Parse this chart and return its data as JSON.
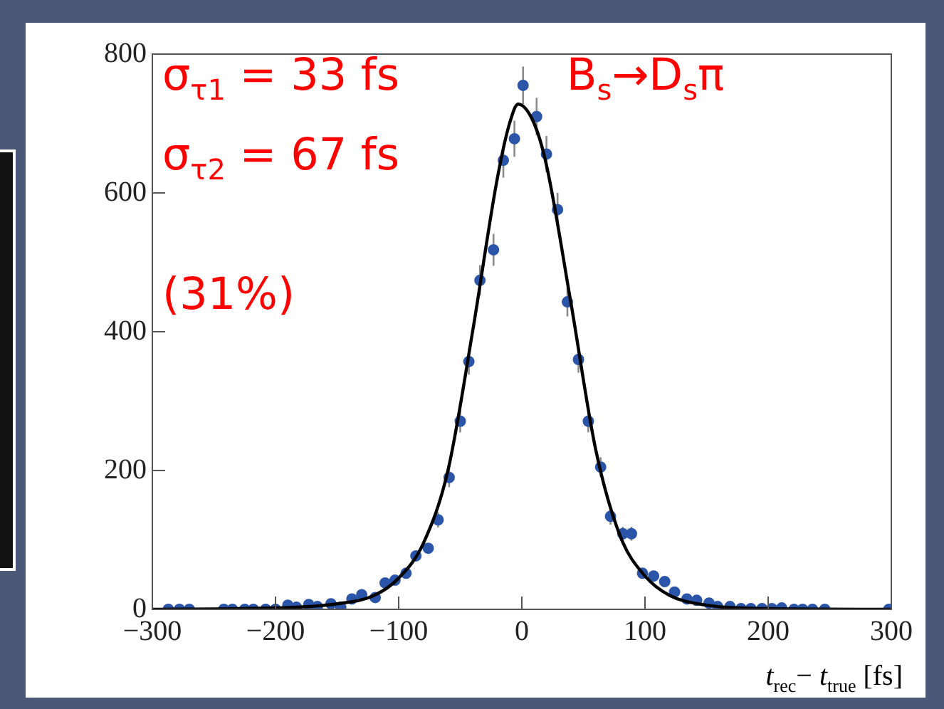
{
  "chart_data": {
    "type": "scatter",
    "xlabel": "t$_{rec}$− t$_{true}$ [fs]",
    "annotations": [
      "σ$_{τ1}$ = 33 fs",
      "σ$_{τ2}$ = 67 fs",
      "(31%)",
      "B$_{s}$→D$_{s}$π"
    ],
    "xlim": [
      -300,
      300
    ],
    "xticks": [
      -300,
      -200,
      -100,
      0,
      100,
      200,
      300
    ],
    "ylim": [
      0,
      800
    ],
    "yticks": [
      0,
      200,
      400,
      600,
      800
    ],
    "grid": false,
    "legend": false,
    "marker": "circle",
    "series": [
      {
        "color": "#2b55a8",
        "x": [
          -287,
          -278,
          -270,
          -242,
          -235,
          -225,
          -218,
          -208,
          -200,
          -190,
          -183,
          -173,
          -166,
          -155,
          -147,
          -138,
          -130,
          -119,
          -111,
          -103,
          -94,
          -86,
          -76,
          -68,
          -59,
          -50,
          -43,
          -34,
          -23,
          -15,
          -6,
          1,
          12,
          20,
          29,
          37,
          46,
          54,
          64,
          72,
          82,
          89,
          98,
          107,
          116,
          124,
          134,
          142,
          152,
          159,
          169,
          178,
          186,
          195,
          203,
          211,
          221,
          228,
          236,
          246,
          298
        ],
        "values": [
          0,
          0,
          0,
          0,
          0,
          0,
          0,
          0,
          0,
          6,
          3,
          7,
          4,
          8,
          3,
          15,
          21,
          17,
          38,
          42,
          52,
          77,
          88,
          129,
          190,
          271,
          357,
          474,
          518,
          647,
          678,
          755,
          710,
          656,
          576,
          443,
          360,
          271,
          205,
          134,
          109,
          109,
          52,
          48,
          40,
          25,
          15,
          13,
          9,
          4,
          4,
          1,
          1,
          1,
          1,
          2,
          0,
          0,
          0,
          0,
          0
        ],
        "errors": [
          null,
          null,
          null,
          null,
          null,
          null,
          null,
          null,
          null,
          null,
          null,
          null,
          null,
          null,
          null,
          null,
          null,
          null,
          null,
          null,
          null,
          null,
          null,
          11,
          14,
          16,
          19,
          22,
          23,
          25,
          26,
          27,
          27,
          26,
          24,
          21,
          19,
          16,
          14,
          12,
          10,
          10,
          null,
          null,
          null,
          null,
          null,
          null,
          null,
          null,
          null,
          null,
          null,
          null,
          null,
          null,
          null,
          null,
          null,
          null,
          null
        ]
      },
      {
        "type": "line",
        "marker": "none",
        "color": "#000000",
        "x": [
          -300,
          -200,
          -150,
          -120,
          -100,
          -80,
          -60,
          -40,
          -20,
          -10,
          -3,
          10,
          20,
          40,
          60,
          80,
          100,
          120,
          150,
          200,
          300
        ],
        "values": [
          0,
          2,
          8,
          20,
          45,
          95,
          200,
          400,
          620,
          700,
          728,
          700,
          640,
          440,
          230,
          105,
          48,
          20,
          6,
          1,
          0
        ]
      }
    ]
  }
}
